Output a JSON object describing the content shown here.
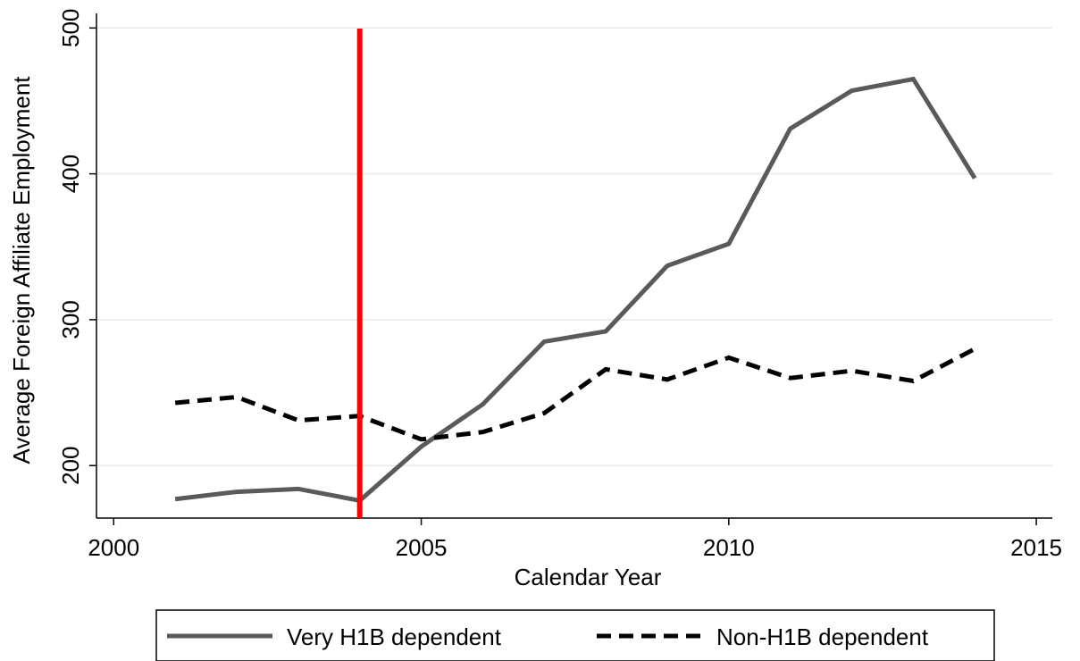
{
  "chart_data": {
    "type": "line",
    "x": [
      2001,
      2002,
      2003,
      2004,
      2005,
      2006,
      2007,
      2008,
      2009,
      2010,
      2011,
      2012,
      2013,
      2014
    ],
    "series": [
      {
        "name": "Very H1B dependent",
        "color": "#5a5a5a",
        "dash": "solid",
        "values": [
          177,
          182,
          184,
          176,
          213,
          242,
          285,
          292,
          337,
          352,
          431,
          457,
          465,
          397
        ]
      },
      {
        "name": "Non-H1B dependent",
        "color": "#000000",
        "dash": "dashed",
        "values": [
          243,
          247,
          231,
          234,
          218,
          223,
          236,
          266,
          259,
          274,
          260,
          265,
          258,
          280
        ]
      }
    ],
    "xlabel": "Calendar Year",
    "ylabel": "Average Foreign Affiliate Employment",
    "xlim": [
      1999.72,
      2015.26
    ],
    "ylim": [
      164,
      510
    ],
    "xticks": [
      2000,
      2005,
      2010,
      2015
    ],
    "yticks": [
      200,
      300,
      400,
      500
    ],
    "grid": true,
    "vline": {
      "x": 2004,
      "color": "#ff0000"
    },
    "legend": "bottom"
  }
}
